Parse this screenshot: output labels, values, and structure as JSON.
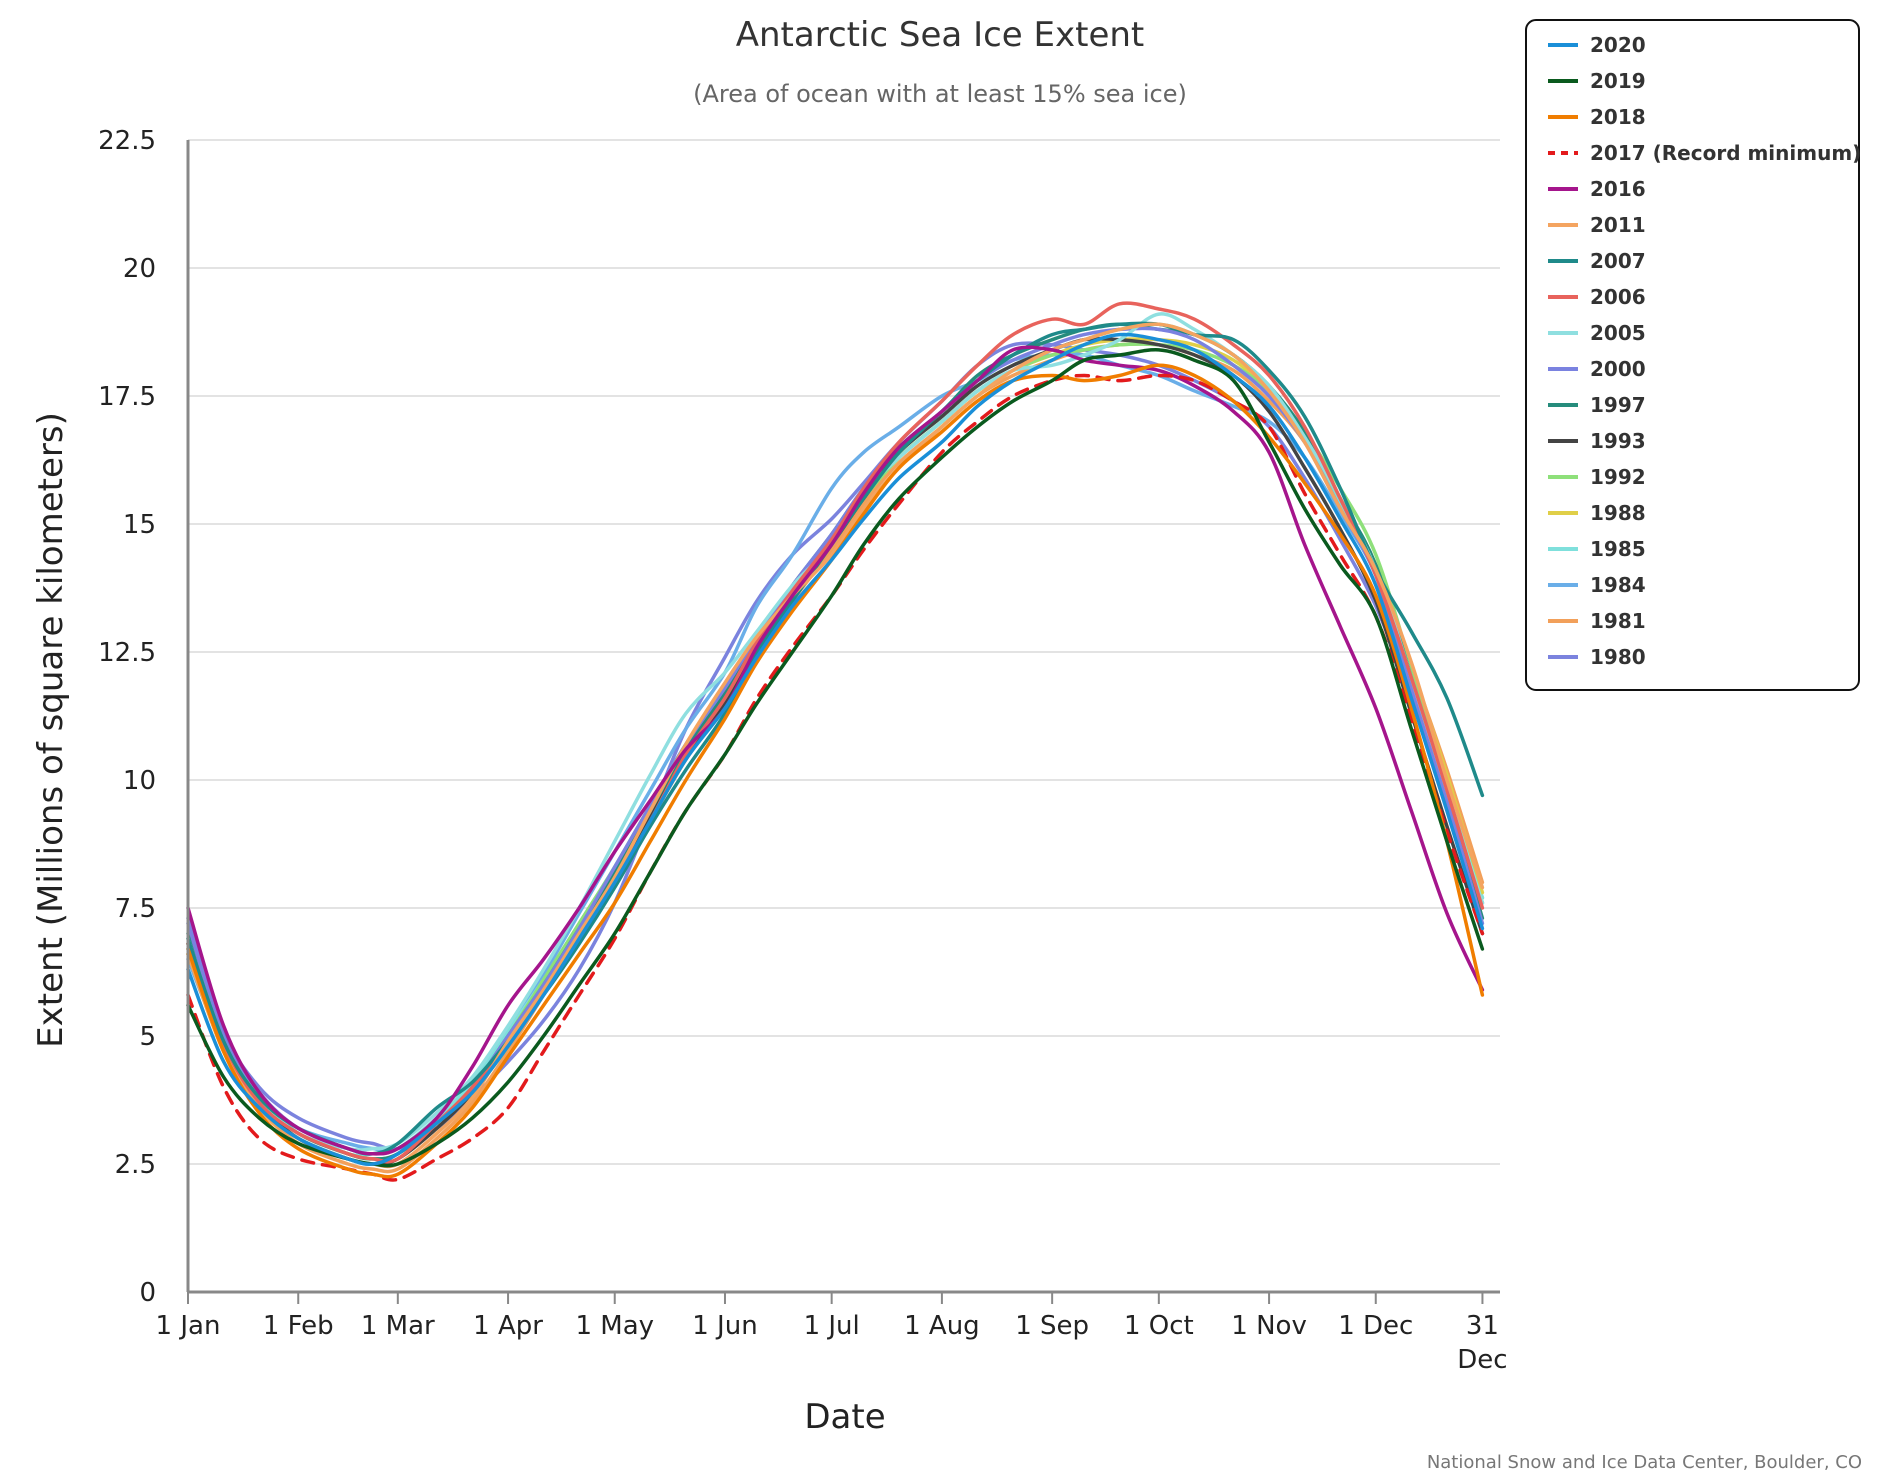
{
  "chart_data": {
    "type": "line",
    "title": "Antarctic Sea Ice Extent",
    "subtitle": "(Area of ocean with at least 15% sea ice)",
    "xlabel": "Date",
    "ylabel": "Extent (Millions of square kilometers)",
    "credit": "National Snow and Ice Data Center, Boulder, CO",
    "ylim": [
      0,
      22.5
    ],
    "yticks": [
      "0",
      "2.5",
      "5",
      "7.5",
      "10",
      "12.5",
      "15",
      "17.5",
      "20",
      "22.5"
    ],
    "xlim_day": [
      0,
      365
    ],
    "xticks": [
      {
        "label": "1 Jan",
        "day": 0
      },
      {
        "label": "1 Feb",
        "day": 31
      },
      {
        "label": "1 Mar",
        "day": 59
      },
      {
        "label": "1 Apr",
        "day": 90
      },
      {
        "label": "1 May",
        "day": 120
      },
      {
        "label": "1 Jun",
        "day": 151
      },
      {
        "label": "1 Jul",
        "day": 181
      },
      {
        "label": "1 Aug",
        "day": 212
      },
      {
        "label": "1 Sep",
        "day": 243
      },
      {
        "label": "1 Oct",
        "day": 273
      },
      {
        "label": "1 Nov",
        "day": 304
      },
      {
        "label": "1 Dec",
        "day": 334
      },
      {
        "label": "31",
        "label2": "Dec",
        "day": 364
      }
    ],
    "legend_position": "top-right",
    "x_days": [
      0,
      10,
      20,
      31,
      45,
      52,
      59,
      70,
      80,
      90,
      100,
      110,
      120,
      130,
      140,
      151,
      160,
      170,
      181,
      190,
      200,
      212,
      222,
      232,
      243,
      252,
      262,
      273,
      283,
      294,
      304,
      314,
      324,
      334,
      344,
      354,
      364
    ],
    "series": [
      {
        "name": "2020",
        "color": "#1a8fd8",
        "dash": false,
        "values": [
          6.3,
          4.5,
          3.6,
          3.0,
          2.6,
          2.5,
          2.7,
          3.3,
          3.9,
          4.8,
          5.8,
          6.9,
          8.0,
          9.2,
          10.4,
          11.4,
          12.4,
          13.4,
          14.3,
          15.1,
          15.9,
          16.6,
          17.3,
          17.8,
          18.2,
          18.5,
          18.7,
          18.6,
          18.4,
          17.9,
          17.3,
          16.3,
          15.1,
          13.8,
          11.6,
          9.4,
          7.1
        ]
      },
      {
        "name": "2019",
        "color": "#0a5a1e",
        "dash": false,
        "values": [
          5.6,
          4.2,
          3.4,
          2.9,
          2.6,
          2.5,
          2.5,
          2.9,
          3.4,
          4.1,
          5.0,
          6.0,
          7.0,
          8.2,
          9.4,
          10.5,
          11.5,
          12.5,
          13.6,
          14.6,
          15.5,
          16.3,
          16.9,
          17.4,
          17.8,
          18.2,
          18.3,
          18.4,
          18.2,
          17.8,
          16.6,
          15.3,
          14.2,
          13.2,
          11.0,
          8.8,
          6.7
        ]
      },
      {
        "name": "2018",
        "color": "#f07d00",
        "dash": false,
        "values": [
          6.7,
          4.7,
          3.5,
          2.8,
          2.4,
          2.3,
          2.3,
          2.9,
          3.6,
          4.6,
          5.6,
          6.6,
          7.6,
          8.8,
          10.0,
          11.2,
          12.3,
          13.3,
          14.3,
          15.2,
          16.1,
          16.8,
          17.4,
          17.8,
          17.9,
          17.8,
          17.9,
          18.1,
          17.9,
          17.4,
          16.7,
          15.8,
          14.8,
          13.6,
          11.4,
          8.8,
          5.8
        ]
      },
      {
        "name": "2017 (Record minimum)",
        "color": "#e31a1c",
        "dash": true,
        "values": [
          5.8,
          4.0,
          3.0,
          2.6,
          2.4,
          2.3,
          2.2,
          2.6,
          3.0,
          3.6,
          4.7,
          5.8,
          6.9,
          8.2,
          9.4,
          10.5,
          11.6,
          12.6,
          13.6,
          14.5,
          15.4,
          16.4,
          17.0,
          17.5,
          17.8,
          17.9,
          17.8,
          17.9,
          17.8,
          17.4,
          16.9,
          15.6,
          14.4,
          13.2,
          11.2,
          9.0,
          7.0
        ]
      },
      {
        "name": "2016",
        "color": "#a5158c",
        "dash": false,
        "values": [
          7.5,
          5.2,
          3.9,
          3.2,
          2.8,
          2.7,
          2.8,
          3.4,
          4.4,
          5.6,
          6.5,
          7.5,
          8.6,
          9.6,
          10.6,
          11.4,
          12.6,
          13.6,
          14.6,
          15.6,
          16.5,
          17.2,
          17.8,
          18.4,
          18.4,
          18.2,
          18.1,
          18.0,
          17.7,
          17.2,
          16.4,
          14.6,
          13.0,
          11.4,
          9.4,
          7.4,
          5.9
        ]
      },
      {
        "name": "2011",
        "color": "#f4a460",
        "dash": false,
        "values": [
          6.6,
          4.7,
          3.6,
          3.0,
          2.6,
          2.5,
          2.5,
          3.1,
          3.8,
          4.9,
          5.9,
          7.0,
          8.1,
          9.4,
          10.7,
          11.9,
          12.8,
          13.6,
          14.4,
          15.3,
          16.1,
          16.9,
          17.5,
          18.0,
          18.4,
          18.6,
          18.8,
          18.9,
          18.7,
          18.3,
          17.6,
          16.6,
          15.3,
          14.1,
          12.3,
          10.0,
          7.9
        ]
      },
      {
        "name": "2007",
        "color": "#1f8a8a",
        "dash": false,
        "values": [
          6.9,
          4.9,
          3.8,
          3.2,
          2.8,
          2.7,
          2.9,
          3.6,
          4.1,
          4.9,
          5.8,
          6.8,
          7.9,
          9.1,
          10.2,
          11.3,
          12.5,
          13.5,
          14.6,
          15.5,
          16.4,
          17.2,
          17.8,
          18.3,
          18.7,
          18.8,
          18.9,
          18.9,
          18.7,
          18.6,
          18.0,
          17.1,
          15.7,
          14.1,
          12.9,
          11.6,
          9.7
        ]
      },
      {
        "name": "2006",
        "color": "#e8635c",
        "dash": false,
        "values": [
          6.8,
          4.8,
          3.7,
          3.1,
          2.7,
          2.6,
          2.6,
          3.3,
          4.0,
          4.9,
          5.9,
          6.9,
          8.0,
          9.2,
          10.5,
          11.6,
          12.7,
          13.7,
          14.7,
          15.7,
          16.6,
          17.4,
          18.1,
          18.7,
          19.0,
          18.9,
          19.3,
          19.2,
          19.0,
          18.5,
          17.9,
          16.9,
          15.5,
          14.0,
          12.0,
          9.8,
          7.5
        ]
      },
      {
        "name": "2005",
        "color": "#8fdfe0",
        "dash": false,
        "values": [
          6.9,
          4.9,
          3.8,
          3.1,
          2.8,
          2.8,
          2.9,
          3.5,
          4.2,
          5.2,
          6.3,
          7.5,
          8.8,
          10.1,
          11.3,
          12.1,
          12.9,
          13.8,
          14.6,
          15.6,
          16.3,
          17.0,
          17.6,
          18.0,
          18.1,
          18.3,
          18.6,
          19.1,
          18.8,
          18.3,
          17.7,
          16.7,
          15.5,
          14.1,
          12.0,
          9.8,
          7.6
        ]
      },
      {
        "name": "2000",
        "color": "#7a82e0",
        "dash": false,
        "values": [
          7.2,
          5.0,
          3.9,
          3.2,
          2.8,
          2.7,
          2.8,
          3.3,
          4.0,
          5.0,
          6.0,
          7.1,
          8.3,
          9.5,
          10.7,
          11.8,
          12.8,
          13.8,
          14.8,
          15.7,
          16.5,
          17.2,
          17.8,
          18.2,
          18.5,
          18.7,
          18.8,
          18.8,
          18.6,
          18.1,
          17.5,
          16.6,
          15.3,
          14.0,
          11.8,
          9.6,
          7.2
        ]
      },
      {
        "name": "1997",
        "color": "#268c7c",
        "dash": false,
        "values": [
          7.0,
          5.0,
          3.8,
          3.1,
          2.7,
          2.6,
          2.7,
          3.3,
          4.0,
          5.0,
          6.0,
          7.1,
          8.2,
          9.4,
          10.6,
          11.7,
          12.8,
          13.8,
          14.8,
          15.7,
          16.5,
          17.2,
          17.9,
          18.3,
          18.6,
          18.8,
          18.9,
          18.8,
          18.7,
          18.3,
          17.7,
          16.8,
          15.5,
          14.2,
          12.0,
          9.7,
          7.3
        ]
      },
      {
        "name": "1993",
        "color": "#444444",
        "dash": false,
        "values": [
          6.8,
          4.8,
          3.7,
          3.0,
          2.6,
          2.5,
          2.6,
          3.2,
          3.9,
          4.9,
          5.9,
          7.0,
          8.1,
          9.3,
          10.5,
          11.5,
          12.6,
          13.6,
          14.6,
          15.5,
          16.4,
          17.1,
          17.7,
          18.1,
          18.4,
          18.6,
          18.6,
          18.5,
          18.3,
          17.9,
          17.2,
          16.1,
          14.9,
          13.5,
          11.3,
          9.1,
          7.0
        ]
      },
      {
        "name": "1992",
        "color": "#8ee07a",
        "dash": false,
        "values": [
          6.8,
          4.8,
          3.7,
          3.1,
          2.7,
          2.6,
          2.7,
          3.3,
          4.0,
          5.0,
          6.1,
          7.2,
          8.3,
          9.5,
          10.6,
          11.6,
          12.6,
          13.6,
          14.6,
          15.5,
          16.3,
          17.0,
          17.6,
          18.0,
          18.3,
          18.4,
          18.5,
          18.5,
          18.4,
          18.1,
          17.6,
          16.8,
          15.7,
          14.4,
          12.2,
          9.9,
          7.6
        ]
      },
      {
        "name": "1988",
        "color": "#e0cf48",
        "dash": false,
        "values": [
          6.6,
          4.7,
          3.6,
          3.0,
          2.6,
          2.5,
          2.6,
          3.2,
          3.9,
          4.8,
          5.9,
          7.0,
          8.1,
          9.3,
          10.5,
          11.6,
          12.6,
          13.6,
          14.6,
          15.5,
          16.3,
          17.0,
          17.6,
          18.0,
          18.3,
          18.5,
          18.6,
          18.6,
          18.5,
          18.2,
          17.6,
          16.7,
          15.5,
          14.2,
          12.2,
          10.1,
          7.8
        ]
      },
      {
        "name": "1985",
        "color": "#7fe0dc",
        "dash": false,
        "values": [
          6.7,
          4.8,
          3.7,
          3.1,
          2.7,
          2.7,
          2.8,
          3.4,
          4.1,
          5.1,
          6.1,
          7.2,
          8.3,
          9.5,
          10.7,
          11.7,
          12.7,
          13.7,
          14.7,
          15.6,
          16.4,
          17.1,
          17.7,
          18.1,
          18.4,
          18.6,
          18.8,
          18.9,
          18.7,
          18.3,
          17.6,
          16.7,
          15.4,
          14.1,
          12.0,
          9.8,
          7.7
        ]
      },
      {
        "name": "1984",
        "color": "#6aaee8",
        "dash": false,
        "values": [
          6.5,
          4.8,
          3.8,
          3.2,
          2.9,
          2.8,
          2.8,
          3.4,
          4.1,
          5.1,
          6.2,
          7.4,
          8.6,
          9.8,
          11.0,
          12.1,
          13.4,
          14.4,
          15.7,
          16.4,
          16.9,
          17.5,
          17.8,
          18.2,
          18.3,
          18.3,
          18.1,
          17.9,
          17.6,
          17.3,
          17.0,
          16.3,
          15.2,
          14.0,
          11.9,
          9.8,
          7.7
        ]
      },
      {
        "name": "1981",
        "color": "#f2a05a",
        "dash": false,
        "values": [
          6.6,
          4.7,
          3.6,
          2.9,
          2.5,
          2.4,
          2.4,
          3.0,
          3.7,
          4.7,
          5.8,
          6.9,
          8.0,
          9.2,
          10.4,
          11.5,
          12.5,
          13.5,
          14.5,
          15.4,
          16.2,
          16.9,
          17.5,
          17.9,
          18.2,
          18.4,
          18.5,
          18.5,
          18.3,
          18.0,
          17.4,
          16.6,
          15.4,
          14.2,
          12.2,
          10.2,
          8.0
        ]
      },
      {
        "name": "1980",
        "color": "#7b83de",
        "dash": false,
        "values": [
          7.3,
          5.1,
          4.0,
          3.4,
          3.0,
          2.9,
          2.8,
          3.2,
          3.8,
          4.5,
          5.3,
          6.3,
          7.6,
          9.3,
          11.0,
          12.4,
          13.5,
          14.4,
          15.1,
          15.8,
          16.6,
          17.4,
          18.1,
          18.5,
          18.5,
          18.4,
          18.3,
          18.1,
          17.8,
          17.4,
          16.9,
          15.9,
          14.7,
          13.4,
          11.6,
          9.6,
          7.6
        ]
      }
    ]
  }
}
